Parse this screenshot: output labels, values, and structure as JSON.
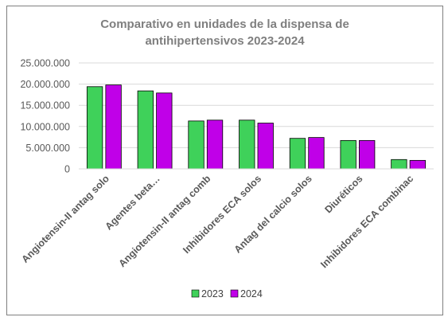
{
  "chart_data": {
    "type": "bar",
    "title_line1": "Comparativo en unidades de la dispensa de",
    "title_line2": "antihipertensivos 2023-2024",
    "categories": [
      "Angiotensin-II antag solo",
      "Agentes beta…",
      "Angiotensin-II antag comb",
      "Inhibidores ECA solos",
      "Antag del calcio solos",
      "Diuréticos",
      "Inhibidores ECA combinac"
    ],
    "series": [
      {
        "name": "2023",
        "color": "#3fd15a",
        "values": [
          19400000,
          18400000,
          11300000,
          11500000,
          7200000,
          6700000,
          2200000
        ]
      },
      {
        "name": "2024",
        "color": "#c000e8",
        "values": [
          19800000,
          17900000,
          11500000,
          10800000,
          7400000,
          6700000,
          2000000
        ]
      }
    ],
    "ylim": [
      0,
      25000000
    ],
    "yticks": [
      {
        "value": 0,
        "label": "0"
      },
      {
        "value": 5000000,
        "label": "5.000.000"
      },
      {
        "value": 10000000,
        "label": "10.000.000"
      },
      {
        "value": 15000000,
        "label": "15.000.000"
      },
      {
        "value": 20000000,
        "label": "20.000.000"
      },
      {
        "value": 25000000,
        "label": "25.000.000"
      }
    ],
    "grid": true,
    "legend_position": "bottom"
  }
}
